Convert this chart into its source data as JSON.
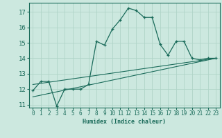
{
  "title": "",
  "xlabel": "Humidex (Indice chaleur)",
  "xlim": [
    -0.5,
    23.5
  ],
  "ylim": [
    10.8,
    17.6
  ],
  "yticks": [
    11,
    12,
    13,
    14,
    15,
    16,
    17
  ],
  "xticks": [
    0,
    1,
    2,
    3,
    4,
    5,
    6,
    7,
    8,
    9,
    10,
    11,
    12,
    13,
    14,
    15,
    16,
    17,
    18,
    19,
    20,
    21,
    22,
    23
  ],
  "background_color": "#cce8df",
  "line_color": "#1a6b5a",
  "grid_color": "#b0d4c8",
  "series1_x": [
    0,
    1,
    2,
    3,
    4,
    5,
    6,
    7,
    8,
    9,
    10,
    11,
    12,
    13,
    14,
    15,
    16,
    17,
    18,
    19,
    20,
    21,
    22,
    23
  ],
  "series1_y": [
    11.9,
    12.5,
    12.5,
    10.9,
    12.0,
    12.0,
    12.0,
    12.3,
    15.1,
    14.85,
    15.9,
    16.5,
    17.25,
    17.1,
    16.65,
    16.65,
    14.9,
    14.2,
    15.1,
    15.1,
    14.0,
    13.9,
    14.0,
    14.0
  ],
  "trend1_x": [
    0,
    23
  ],
  "trend1_y": [
    11.5,
    14.0
  ],
  "trend2_x": [
    0,
    23
  ],
  "trend2_y": [
    12.3,
    14.0
  ]
}
